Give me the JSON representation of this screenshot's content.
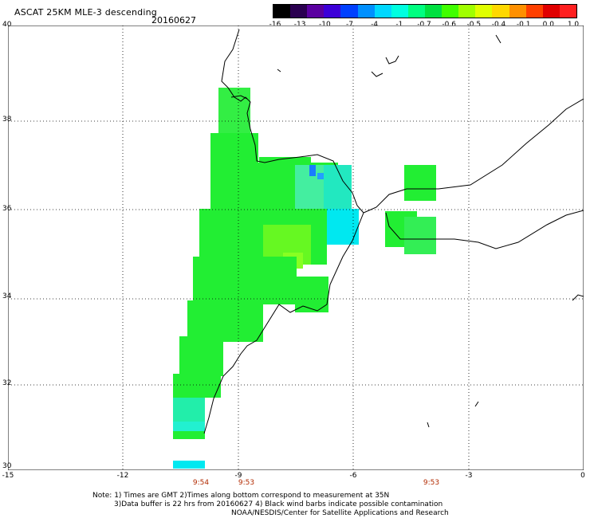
{
  "header": {
    "title": "ASCAT 25KM MLE-3 descending",
    "date": "20160627"
  },
  "colorbar": {
    "labels": [
      "-16",
      "-13",
      "-10",
      "-7",
      "-4",
      "-1",
      "-0.7",
      "-0.6",
      "-0.5",
      "-0.4",
      "-0.1",
      "0.0",
      "1.0"
    ],
    "colors": [
      "#000000",
      "#2a0050",
      "#5a00a0",
      "#3c00d8",
      "#0040ff",
      "#0090ff",
      "#00d8ff",
      "#00ffe0",
      "#00ff80",
      "#00e040",
      "#40ff00",
      "#a0ff00",
      "#e0ff00",
      "#ffd800",
      "#ff9000",
      "#ff4000",
      "#e00000",
      "#ff2020"
    ]
  },
  "axes": {
    "lat_labels": [
      "40",
      "38",
      "36",
      "34",
      "32",
      "30"
    ],
    "lon_labels": [
      "-15",
      "-12",
      "-9",
      "-6",
      "-3",
      "0"
    ]
  },
  "pass_times": [
    "9:54",
    "9:53",
    "9:53"
  ],
  "notes": {
    "line1": "Note: 1) Times are GMT 2)Times along bottom correspond to measurement at 35N",
    "line2": "3)Data buffer is 22 hrs from 20160627 4) Black wind barbs indicate possible contamination",
    "line3": "NOAA/NESDIS/Center for Satellite Applications and Research"
  },
  "map": {
    "lon_range": [
      -15,
      0
    ],
    "lat_range": [
      30,
      40
    ],
    "grid": "dotted",
    "swath_colors": {
      "green": "#22ee33",
      "light_green": "#44f044",
      "yellow_green": "#88ff22",
      "teal": "#22f0a0",
      "cyan": "#00e8f0",
      "light_cyan": "#22e0ff",
      "blue": "#1a7cff"
    }
  }
}
